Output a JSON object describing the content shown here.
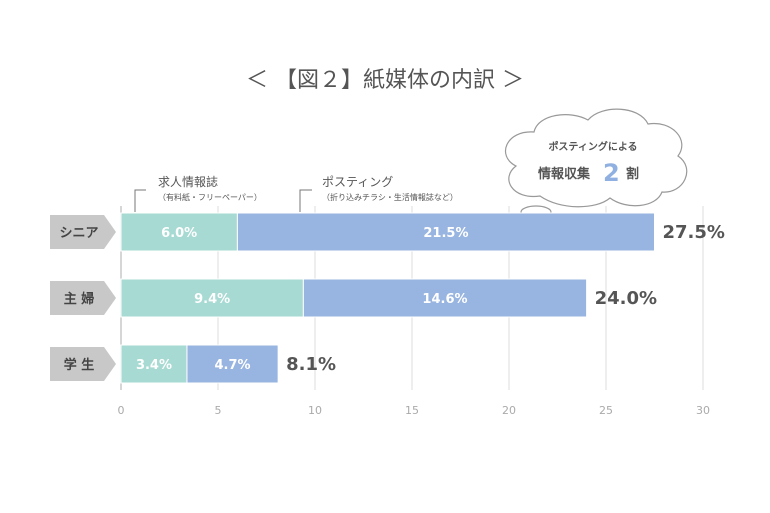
{
  "chart_data": {
    "type": "bar",
    "stacked": true,
    "orientation": "horizontal",
    "title": "＜ 【図２】紙媒体の内訳 ＞",
    "categories": [
      "シニア",
      "主 婦",
      "学 生"
    ],
    "series": [
      {
        "name": "求人情報誌",
        "note": "（有料紙・フリーペーパー）",
        "color": "#a6dad2",
        "values": [
          6.0,
          9.4,
          3.4
        ],
        "labels": [
          "6.0%",
          "9.4%",
          "3.4%"
        ]
      },
      {
        "name": "ポスティング",
        "note": "（折り込みチラシ・生活情報誌など）",
        "color": "#98b4e0",
        "values": [
          21.5,
          14.6,
          4.7
        ],
        "labels": [
          "21.5%",
          "14.6%",
          "4.7%"
        ]
      }
    ],
    "totals": [
      "27.5%",
      "24.0%",
      "8.1%"
    ],
    "xlim": [
      0,
      30
    ],
    "xticks": [
      "0",
      "5",
      "10",
      "15",
      "20",
      "25",
      "30"
    ],
    "grid": true,
    "annotation": {
      "line1": "ポスティングによる",
      "line2_prefix": "情報収集",
      "number": "2",
      "line2_suffix": "割"
    }
  },
  "colors": {
    "category_tag": "#c8c8c8",
    "grid": "#dddddd",
    "axis": "#bbbbbb"
  }
}
